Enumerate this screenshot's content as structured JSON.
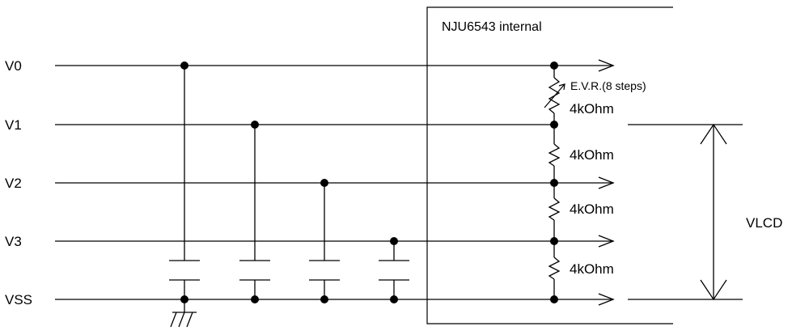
{
  "title": "NJU6543 internal",
  "nodes": [
    {
      "label": "V0"
    },
    {
      "label": "V1"
    },
    {
      "label": "V2"
    },
    {
      "label": "V3"
    },
    {
      "label": "VSS"
    }
  ],
  "evr_label": "E.V.R.(8 steps)",
  "resistors": [
    {
      "label": "4kOhm"
    },
    {
      "label": "4kOhm"
    },
    {
      "label": "4kOhm"
    },
    {
      "label": "4kOhm"
    }
  ],
  "vlcd_label": "VLCD"
}
